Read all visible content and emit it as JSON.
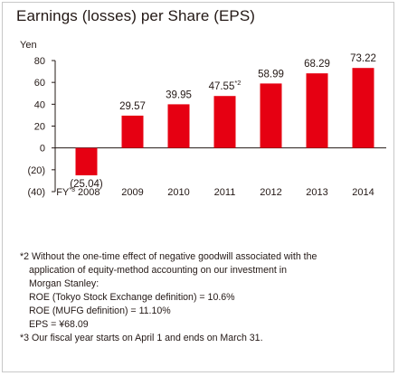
{
  "chart_data": {
    "type": "bar",
    "title": "Earnings (losses) per Share (EPS)",
    "ylabel": "Yen",
    "xlabel": "",
    "categories": [
      "FY*3 2008",
      "2009",
      "2010",
      "2011",
      "2012",
      "2013",
      "2014"
    ],
    "values": [
      -25.04,
      29.57,
      39.95,
      47.55,
      58.99,
      68.29,
      73.22
    ],
    "data_labels": [
      "(25.04)",
      "29.57",
      "39.95",
      "47.55",
      "58.99",
      "68.29",
      "73.22"
    ],
    "label_superscripts": [
      "",
      "",
      "",
      "*2",
      "",
      "",
      ""
    ],
    "ylim": [
      -40,
      80
    ],
    "yticks": [
      -40,
      -20,
      0,
      20,
      40,
      60,
      80
    ],
    "ytick_labels": [
      "(40)",
      "(20)",
      "0",
      "20",
      "40",
      "60",
      "80"
    ],
    "bar_color": "#e60012",
    "grid": false,
    "legend": "none"
  },
  "notes": {
    "note2_marker": "*2",
    "note2_lines": [
      "Without the one-time effect of negative goodwill associated with the",
      "application of equity-method accounting on our investment in",
      "Morgan Stanley:",
      "ROE (Tokyo Stock Exchange definition) = 10.6%",
      "ROE (MUFG definition) = 11.10%",
      "EPS = ¥68.09"
    ],
    "note3_marker": "*3",
    "note3_text": "Our fiscal year starts on April 1 and ends on March 31."
  }
}
